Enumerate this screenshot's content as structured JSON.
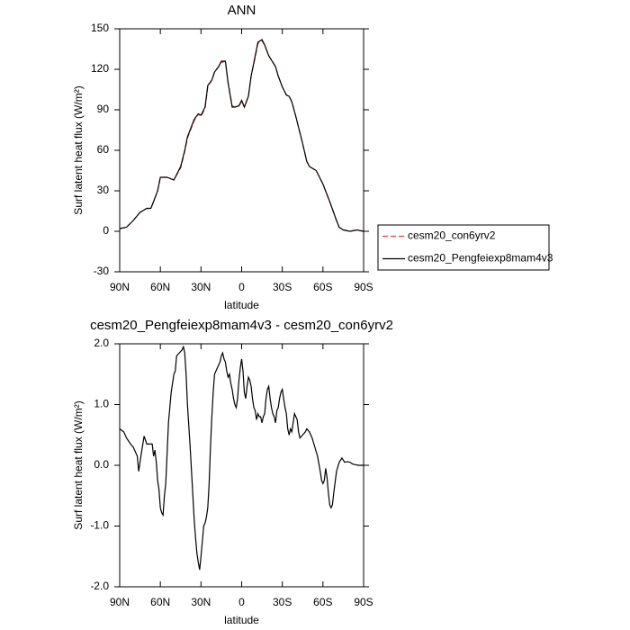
{
  "chart_data": [
    {
      "type": "line",
      "title": "ANN",
      "x_label": "latitude",
      "y_label": "Surf latent heat flux (W/m²)",
      "xlim": [
        90,
        -90
      ],
      "ylim": [
        -30,
        150
      ],
      "xticks": [
        {
          "value": 90,
          "label": "90N"
        },
        {
          "value": 60,
          "label": "60N"
        },
        {
          "value": 30,
          "label": "30N"
        },
        0,
        {
          "value": -30,
          "label": "30S"
        },
        {
          "value": -60,
          "label": "60S"
        },
        {
          "value": -90,
          "label": "90S"
        }
      ],
      "yticks": [
        -30,
        0,
        30,
        60,
        90,
        120,
        150
      ],
      "legend": "right",
      "x": [
        90,
        85,
        80,
        75,
        70,
        67,
        65,
        62,
        60,
        55,
        50,
        45,
        42,
        40,
        35,
        32,
        30,
        27,
        25,
        22,
        20,
        17,
        15,
        12,
        10,
        7,
        5,
        2,
        0,
        -2,
        -5,
        -7,
        -10,
        -12,
        -15,
        -17,
        -20,
        -25,
        -27,
        -30,
        -33,
        -35,
        -37,
        -40,
        -45,
        -48,
        -50,
        -55,
        -60,
        -65,
        -70,
        -72,
        -75,
        -80,
        -85,
        -90
      ],
      "series": [
        {
          "name": "cesm20_con6yrv2",
          "color": "#e8413c",
          "linestyle": "dashed",
          "values": [
            2,
            3,
            8,
            14,
            17,
            17,
            22,
            30,
            40,
            40,
            38,
            47,
            59,
            69,
            82,
            87,
            85,
            91,
            107,
            112,
            118,
            122,
            125,
            126,
            110,
            93,
            92,
            93,
            96,
            92,
            100,
            115,
            129,
            139,
            141,
            138,
            130,
            122,
            115,
            107,
            101,
            100,
            96,
            85,
            65,
            52,
            48,
            45,
            35,
            22,
            8,
            3,
            1,
            0,
            1,
            0
          ]
        },
        {
          "name": "cesm20_Pengfeiexp8mam4v3",
          "color": "#000000",
          "linestyle": "solid",
          "values": [
            2,
            3,
            8,
            14,
            17,
            17,
            22,
            30,
            40,
            40,
            38,
            48,
            60,
            70,
            83,
            87,
            86,
            92,
            108,
            112,
            118,
            122,
            126,
            126,
            110,
            92,
            92,
            93,
            97,
            92,
            100,
            115,
            130,
            140,
            142,
            138,
            130,
            122,
            115,
            107,
            101,
            100,
            96,
            85,
            65,
            52,
            48,
            45,
            35,
            22,
            8,
            3,
            1,
            0,
            1,
            0
          ]
        }
      ]
    },
    {
      "type": "line",
      "title": "cesm20_Pengfeiexp8mam4v3 - cesm20_con6yrv2",
      "x_label": "latitude",
      "y_label": "Surf latent heat flux (W/m²)",
      "xlim": [
        90,
        -90
      ],
      "ylim": [
        -2,
        2
      ],
      "xticks": [
        {
          "value": 90,
          "label": "90N"
        },
        {
          "value": 60,
          "label": "60N"
        },
        {
          "value": 30,
          "label": "30N"
        },
        0,
        {
          "value": -30,
          "label": "30S"
        },
        {
          "value": -60,
          "label": "60S"
        },
        {
          "value": -90,
          "label": "90S"
        }
      ],
      "yticks": [
        {
          "value": -2,
          "label": "-2.0"
        },
        {
          "value": -1,
          "label": "-1.0"
        },
        {
          "value": 0,
          "label": "0.0"
        },
        {
          "value": 1,
          "label": "1.0"
        },
        {
          "value": 2,
          "label": "2.0"
        }
      ],
      "x": [
        90,
        87,
        85,
        82,
        80,
        77,
        76,
        74,
        72,
        70,
        68,
        66,
        65,
        64,
        63,
        62,
        61,
        60,
        59,
        58,
        57,
        56,
        55,
        54,
        52,
        50,
        49,
        48,
        46,
        44,
        43,
        42,
        41,
        40,
        38,
        37,
        36,
        35,
        34,
        33,
        32,
        31,
        30,
        29,
        28,
        27,
        26,
        25,
        24,
        23,
        22,
        21,
        20,
        18,
        16,
        15,
        14,
        13,
        12,
        11,
        10,
        9,
        8,
        7,
        6,
        5,
        4,
        3,
        2,
        1,
        0,
        -1,
        -2,
        -3,
        -4,
        -5,
        -6,
        -7,
        -8,
        -9,
        -10,
        -11,
        -12,
        -13,
        -14,
        -15,
        -16,
        -17,
        -18,
        -19,
        -20,
        -21,
        -22,
        -23,
        -24,
        -25,
        -26,
        -27,
        -28,
        -29,
        -30,
        -31,
        -32,
        -33,
        -34,
        -35,
        -36,
        -37,
        -38,
        -39,
        -40,
        -41,
        -42,
        -43,
        -45,
        -47,
        -48,
        -50,
        -52,
        -54,
        -56,
        -58,
        -59,
        -60,
        -61,
        -62,
        -63,
        -64,
        -65,
        -66,
        -67,
        -68,
        -70,
        -72,
        -74,
        -76,
        -78,
        -80,
        -82,
        -84,
        -86,
        -88,
        -90
      ],
      "series": [
        {
          "color": "#000000",
          "linestyle": "solid",
          "values": [
            0.6,
            0.55,
            0.45,
            0.35,
            0.3,
            0.15,
            -0.1,
            0.2,
            0.48,
            0.35,
            0.35,
            0.35,
            0.15,
            0.25,
            0.05,
            -0.25,
            -0.4,
            -0.7,
            -0.78,
            -0.82,
            -0.5,
            -0.3,
            0.2,
            0.7,
            1.2,
            1.5,
            1.55,
            1.8,
            1.85,
            1.9,
            1.95,
            1.85,
            1.5,
            1.0,
            0.3,
            -0.1,
            -0.5,
            -0.9,
            -1.2,
            -1.45,
            -1.6,
            -1.72,
            -1.5,
            -1.25,
            -1.0,
            -0.95,
            -0.85,
            -0.7,
            -0.3,
            0.3,
            0.8,
            1.2,
            1.5,
            1.6,
            1.7,
            1.8,
            1.85,
            1.75,
            1.7,
            1.55,
            1.45,
            1.5,
            1.35,
            1.25,
            1.1,
            1.0,
            0.95,
            1.1,
            1.4,
            1.6,
            1.75,
            1.55,
            1.2,
            1.1,
            1.3,
            1.45,
            1.4,
            1.3,
            1.1,
            0.95,
            0.9,
            0.75,
            0.85,
            0.8,
            0.8,
            0.7,
            0.8,
            0.85,
            1.1,
            1.25,
            1.3,
            1.1,
            0.95,
            0.85,
            0.8,
            0.7,
            0.9,
            0.95,
            1.1,
            1.2,
            1.25,
            1.1,
            0.95,
            0.85,
            0.6,
            0.5,
            0.6,
            0.55,
            0.7,
            0.85,
            0.8,
            0.75,
            0.55,
            0.45,
            0.5,
            0.55,
            0.6,
            0.55,
            0.45,
            0.3,
            0.15,
            -0.1,
            -0.25,
            -0.3,
            -0.25,
            -0.05,
            -0.2,
            -0.45,
            -0.65,
            -0.7,
            -0.65,
            -0.45,
            -0.1,
            0.05,
            0.12,
            0.05,
            0.06,
            0.05,
            0.02,
            0.01,
            0,
            0,
            0
          ]
        }
      ]
    }
  ]
}
